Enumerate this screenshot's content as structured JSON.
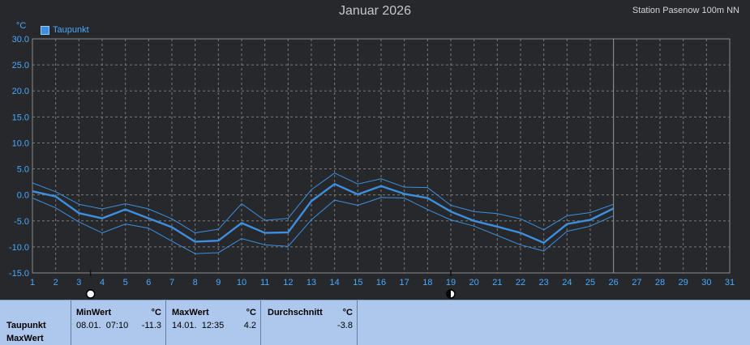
{
  "header": {
    "title": "Januar 2026",
    "station": "Station Pasenow 100m NN",
    "unit": "°C"
  },
  "chart_data": {
    "type": "line",
    "title": "Januar 2026",
    "ylabel": "°C",
    "xlabel": "",
    "ylim": [
      -15,
      30
    ],
    "y_ticks": [
      "30.0",
      "25.0",
      "20.0",
      "15.0",
      "10.0",
      "5.0",
      "0.0",
      "-5.0",
      "-10.0",
      "-15.0"
    ],
    "x_ticks": [
      "1",
      "2",
      "3",
      "4",
      "5",
      "6",
      "7",
      "8",
      "9",
      "10",
      "11",
      "12",
      "13",
      "14",
      "15",
      "16",
      "17",
      "18",
      "19",
      "20",
      "21",
      "22",
      "23",
      "24",
      "25",
      "26",
      "27",
      "28",
      "29",
      "30",
      "31"
    ],
    "grid": true,
    "legend": "top-left",
    "x": [
      1,
      2,
      3,
      4,
      5,
      6,
      7,
      8,
      9,
      10,
      11,
      12,
      13,
      14,
      15,
      16,
      17,
      18,
      19,
      20,
      21,
      22,
      23,
      24,
      25,
      26
    ],
    "series": [
      {
        "name": "Taupunkt",
        "role": "mean",
        "values": [
          0.7,
          -0.3,
          -3.5,
          -4.5,
          -2.8,
          -4.5,
          -6.2,
          -9.0,
          -8.8,
          -5.4,
          -7.3,
          -7.2,
          -1.2,
          2.1,
          0.1,
          1.7,
          0.2,
          -0.6,
          -3.2,
          -5.0,
          -6.1,
          -7.3,
          -9.2,
          -5.6,
          -4.8,
          -2.6
        ]
      },
      {
        "role": "max",
        "values": [
          2.3,
          0.6,
          -1.8,
          -2.7,
          -1.7,
          -2.7,
          -4.6,
          -7.3,
          -6.6,
          -1.7,
          -4.9,
          -4.5,
          1.0,
          4.2,
          2.1,
          3.1,
          1.5,
          1.4,
          -2.0,
          -3.2,
          -3.6,
          -4.6,
          -6.7,
          -4.0,
          -3.4,
          -1.8
        ]
      },
      {
        "role": "min",
        "values": [
          -0.6,
          -2.5,
          -5.2,
          -7.3,
          -5.6,
          -6.4,
          -8.9,
          -11.3,
          -11.1,
          -8.4,
          -9.6,
          -9.9,
          -4.8,
          -1.0,
          -2.0,
          -0.5,
          -0.6,
          -2.8,
          -4.8,
          -6.0,
          -7.8,
          -9.6,
          -10.8,
          -7.0,
          -6.0,
          -4.0
        ]
      }
    ],
    "colors": {
      "background": "#26282b",
      "grid": "#7a7a7a",
      "axis": "#8c8c8c",
      "tick_text": "#4aa8ff",
      "series": "#3d8fe0",
      "current_day_marker": "#9a9a9a"
    },
    "current_day": 26,
    "markers": [
      {
        "day": 3.5,
        "icon": "full-moon-icon"
      },
      {
        "day": 19,
        "icon": "new-moon-icon"
      }
    ]
  },
  "stats": {
    "series_label": "Taupunkt",
    "type_label": "MaxWert",
    "min": {
      "header": "MinWert",
      "unit": "°C",
      "datetime": "08.01.  07:10",
      "value": "-11.3"
    },
    "max": {
      "header": "MaxWert",
      "unit": "°C",
      "datetime": "14.01.  12:35",
      "value": "4.2"
    },
    "avg": {
      "header": "Durchschnitt",
      "unit": "°C",
      "value": "-3.8"
    }
  }
}
